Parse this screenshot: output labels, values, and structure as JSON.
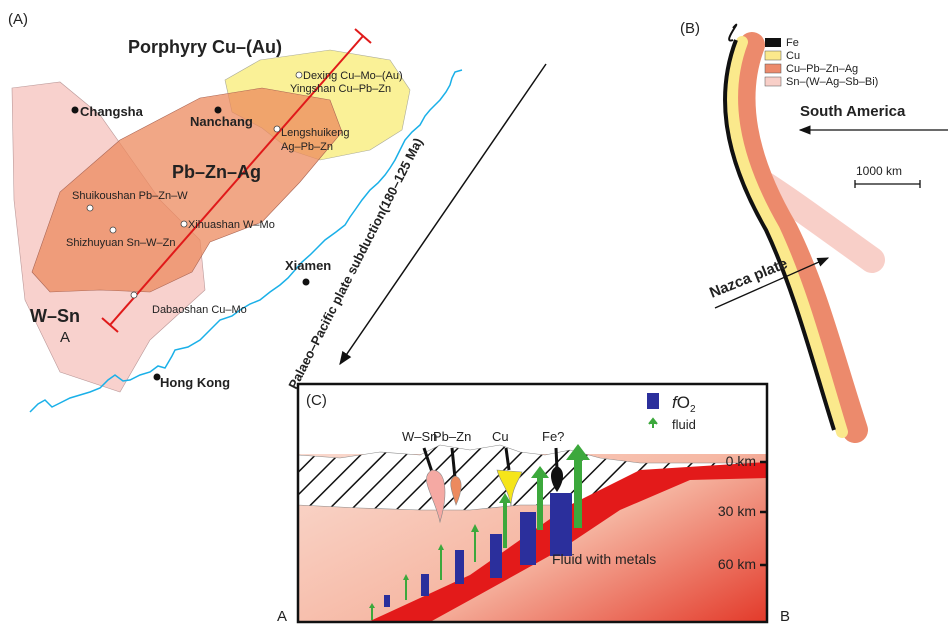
{
  "panel_a": {
    "label": "(A)",
    "porphyry": "Porphyry Cu–(Au)",
    "pbznag": "Pb–Zn–Ag",
    "wsn": "W–Sn",
    "section_start": "A",
    "cities": [
      "Changsha",
      "Nanchang",
      "Xiamen",
      "Hong Kong"
    ],
    "deposits": [
      "Dexing Cu–Mo–(Au)",
      "Yingshan Cu–Pb–Zn",
      "Lengshuikeng",
      "Ag–Pb–Zn",
      "Shuikoushan Pb–Zn–W",
      "Xihuashan W–Mo",
      "Shizhuyuan Sn–W–Zn",
      "Dabaoshan Cu–Mo"
    ],
    "subduction": "Palaeo–Pacific plate subduction(180–125 Ma)"
  },
  "panel_b": {
    "label": "(B)",
    "legend": [
      "Fe",
      "Cu",
      "Cu–Pb–Zn–Ag",
      "Sn–(W–Ag–Sb–Bi)"
    ],
    "continent": "South America",
    "scale": "1000 km",
    "plate": "Nazca plate"
  },
  "panel_c": {
    "label": "(C)",
    "legend_fo2": {
      "italic": "f",
      "base": "O",
      "subscript": "2"
    },
    "legend_fluid": "fluid",
    "intrusions": [
      "W–Sn",
      "Pb–Zn",
      "Cu",
      "Fe?"
    ],
    "depths": [
      "0 km",
      "30 km",
      "60 km"
    ],
    "fluid_note": "Fluid with metals",
    "end_a": "A",
    "end_b": "B"
  }
}
